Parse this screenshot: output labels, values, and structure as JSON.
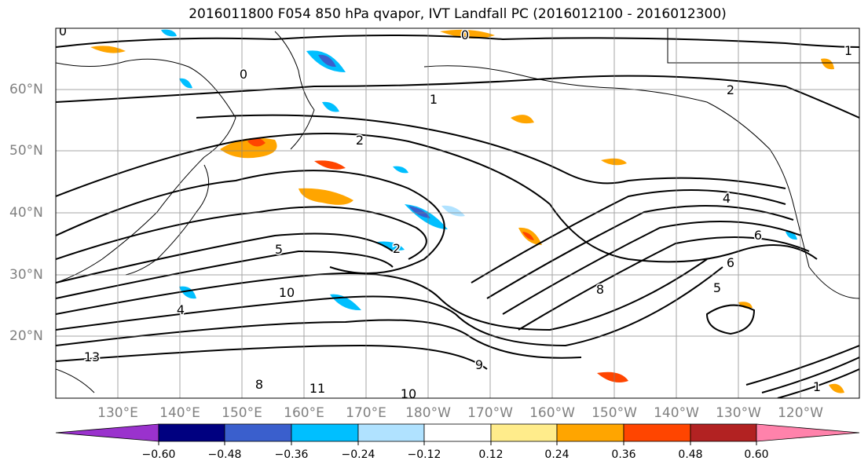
{
  "title": "2016011800 F054 850 hPa qvapor, IVT Landfall PC (2016012100 - 2016012300)",
  "lat_labels": [
    "60°N",
    "50°N",
    "40°N",
    "30°N",
    "20°N"
  ],
  "lon_labels": [
    "130°E",
    "140°E",
    "150°E",
    "160°E",
    "170°E",
    "180°W",
    "170°W",
    "160°W",
    "150°W",
    "140°W",
    "130°W",
    "120°W"
  ],
  "colorbar": {
    "colors": [
      "#9a32cd",
      "#000080",
      "#3a5fcd",
      "#00bfff",
      "#b0e2ff",
      "#ffffff",
      "#ffec8b",
      "#ffa500",
      "#ff4500",
      "#b22222",
      "#ff82ab"
    ],
    "tick_labels": [
      "−0.60",
      "−0.48",
      "−0.36",
      "−0.24",
      "−0.12",
      "0.12",
      "0.24",
      "0.36",
      "0.48",
      "0.60"
    ]
  },
  "contour_labels": [
    "0",
    "0",
    "0",
    "1",
    "1",
    "2",
    "2",
    "2",
    "4",
    "4",
    "5",
    "5",
    "6",
    "6",
    "8",
    "8",
    "9",
    "10",
    "10",
    "11",
    "13",
    "1"
  ]
}
